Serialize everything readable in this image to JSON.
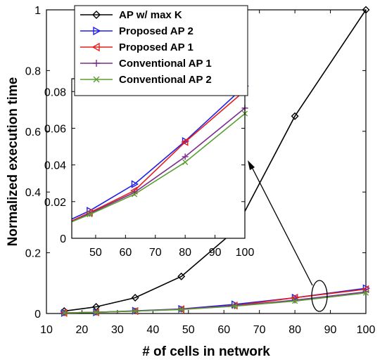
{
  "chart_data": [
    {
      "type": "line",
      "xlabel": "# of cells in network",
      "ylabel": "Normalized execution time",
      "xlim": [
        10,
        100
      ],
      "ylim": [
        0,
        1
      ],
      "xticks": [
        10,
        20,
        30,
        40,
        50,
        60,
        70,
        80,
        90,
        100
      ],
      "yticks": [
        0,
        0.2,
        0.4,
        0.6,
        0.8,
        1
      ],
      "xtick_labels": [
        "10",
        "20",
        "30",
        "40",
        "50",
        "60",
        "70",
        "80",
        "90",
        "100"
      ],
      "ytick_labels": [
        "0",
        "0.2",
        "0.4",
        "0.6",
        "0.8",
        "1"
      ],
      "grid": false,
      "legend_position": "top-left",
      "x": [
        15,
        24,
        35,
        48,
        63,
        80,
        100
      ],
      "series": [
        {
          "name": "AP w/ max K",
          "color": "#000000",
          "marker": "diamond",
          "values": [
            0.008,
            0.022,
            0.052,
            0.122,
            0.272,
            0.65,
            1.0
          ]
        },
        {
          "name": "Proposed AP 2",
          "color": "#1f1fe6",
          "marker": "triangle-right",
          "values": [
            0.002,
            0.004,
            0.009,
            0.015,
            0.03,
            0.052,
            0.083
          ]
        },
        {
          "name": "Proposed AP 1",
          "color": "#e61f1f",
          "marker": "triangle-left",
          "values": [
            0.002,
            0.004,
            0.008,
            0.014,
            0.026,
            0.052,
            0.08
          ]
        },
        {
          "name": "Conventional AP 1",
          "color": "#7b2c8e",
          "marker": "plus",
          "values": [
            0.002,
            0.004,
            0.008,
            0.014,
            0.025,
            0.044,
            0.071
          ]
        },
        {
          "name": "Conventional AP 2",
          "color": "#5a9e32",
          "marker": "x",
          "values": [
            0.002,
            0.004,
            0.008,
            0.013,
            0.024,
            0.041,
            0.068
          ]
        }
      ]
    },
    {
      "type": "line",
      "xlabel": "",
      "ylabel": "",
      "xlim": [
        42,
        100
      ],
      "ylim": [
        0,
        0.087
      ],
      "xticks": [
        50,
        60,
        70,
        80,
        90,
        100
      ],
      "yticks": [
        0,
        0.02,
        0.04,
        0.06,
        0.08
      ],
      "xtick_labels": [
        "50",
        "60",
        "70",
        "80",
        "90",
        "100"
      ],
      "ytick_labels": [
        "0",
        "0.02",
        "0.04",
        "0.06",
        "0.08"
      ],
      "grid": false,
      "x": [
        42,
        48,
        63,
        80,
        100
      ],
      "series": [
        {
          "name": "Proposed AP 2",
          "color": "#1f1fe6",
          "marker": "triangle-right",
          "values": [
            0.0105,
            0.015,
            0.0295,
            0.053,
            0.083
          ]
        },
        {
          "name": "Proposed AP 1",
          "color": "#e61f1f",
          "marker": "triangle-left",
          "values": [
            0.0095,
            0.014,
            0.026,
            0.0525,
            0.0805
          ]
        },
        {
          "name": "Conventional AP 1",
          "color": "#7b2c8e",
          "marker": "plus",
          "values": [
            0.009,
            0.0135,
            0.025,
            0.0445,
            0.071
          ]
        },
        {
          "name": "Conventional AP 2",
          "color": "#5a9e32",
          "marker": "x",
          "values": [
            0.009,
            0.013,
            0.024,
            0.0415,
            0.068
          ]
        }
      ]
    }
  ]
}
